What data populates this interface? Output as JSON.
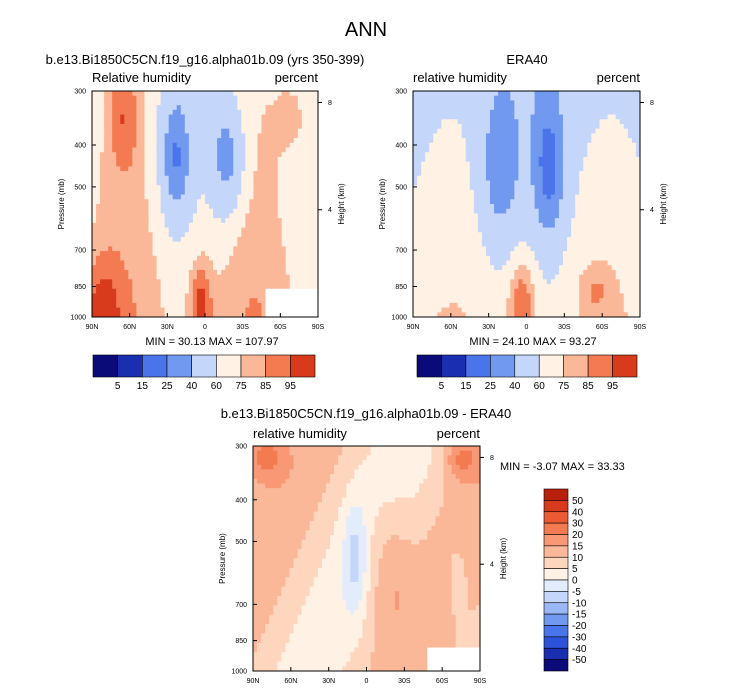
{
  "title": "ANN",
  "colors": {
    "neg": [
      "#0a0a78",
      "#1a2fb0",
      "#2c52d8",
      "#4a74ea",
      "#7199f0",
      "#9ab8f5",
      "#c4d6fa",
      "#e2ecfd"
    ],
    "pos": [
      "#fff1e4",
      "#fdd6bd",
      "#fbb898",
      "#f99874",
      "#f47a52",
      "#ec5a34",
      "#d83b1c",
      "#b8200c",
      "#8c0e04"
    ],
    "missing": "#ffffff"
  },
  "chart_data": [
    {
      "type": "heatmap",
      "id": "model",
      "title": "b.e13.Bi1850C5CN.f19_g16.alpha01b.09 (yrs 350-399)",
      "left_label": "Relative humidity",
      "right_label": "percent",
      "ylabel": "Pressure (mb)",
      "ylabel_right": "Height (km)",
      "x_ticks": [
        "90N",
        "60N",
        "30N",
        "0",
        "30S",
        "60S",
        "90S"
      ],
      "y_ticks": [
        "300",
        "400",
        "500",
        "700",
        "850",
        "1000"
      ],
      "height_ticks": [
        "8",
        "4"
      ],
      "stats": "MIN = 30.13  MAX = 107.97",
      "levels": [
        5,
        15,
        25,
        40,
        60,
        75,
        85,
        95
      ],
      "colorbar_labels": [
        "5",
        "15",
        "25",
        "40",
        "60",
        "75",
        "85",
        "95"
      ]
    },
    {
      "type": "heatmap",
      "id": "obs",
      "title": "ERA40",
      "left_label": "relative humidity",
      "right_label": "percent",
      "ylabel": "Pressure (mb)",
      "ylabel_right": "Height (km)",
      "x_ticks": [
        "90N",
        "60N",
        "30N",
        "0",
        "30S",
        "60S",
        "90S"
      ],
      "y_ticks": [
        "300",
        "400",
        "500",
        "700",
        "850",
        "1000"
      ],
      "height_ticks": [
        "8",
        "4"
      ],
      "stats": "MIN = 24.10  MAX = 93.27",
      "levels": [
        5,
        15,
        25,
        40,
        60,
        75,
        85,
        95
      ],
      "colorbar_labels": [
        "5",
        "15",
        "25",
        "40",
        "60",
        "75",
        "85",
        "95"
      ]
    },
    {
      "type": "heatmap",
      "id": "diff",
      "title": "b.e13.Bi1850C5CN.f19_g16.alpha01b.09 - ERA40",
      "left_label": "relative humidity",
      "right_label": "percent",
      "ylabel": "Pressure (mb)",
      "ylabel_right": "Height (km)",
      "x_ticks": [
        "90N",
        "60N",
        "30N",
        "0",
        "30S",
        "60S",
        "90S"
      ],
      "y_ticks": [
        "300",
        "400",
        "500",
        "700",
        "850",
        "1000"
      ],
      "height_ticks": [
        "8",
        "4"
      ],
      "stats": "MIN = -3.07  MAX = 33.33",
      "levels": [
        -50,
        -40,
        -30,
        -20,
        -15,
        -10,
        -5,
        0,
        5,
        10,
        15,
        20,
        30,
        40,
        50
      ],
      "colorbar_labels": [
        "50",
        "40",
        "30",
        "20",
        "15",
        "10",
        "5",
        "0",
        "-5",
        "-10",
        "-15",
        "-20",
        "-30",
        "-40",
        "-50"
      ]
    }
  ]
}
